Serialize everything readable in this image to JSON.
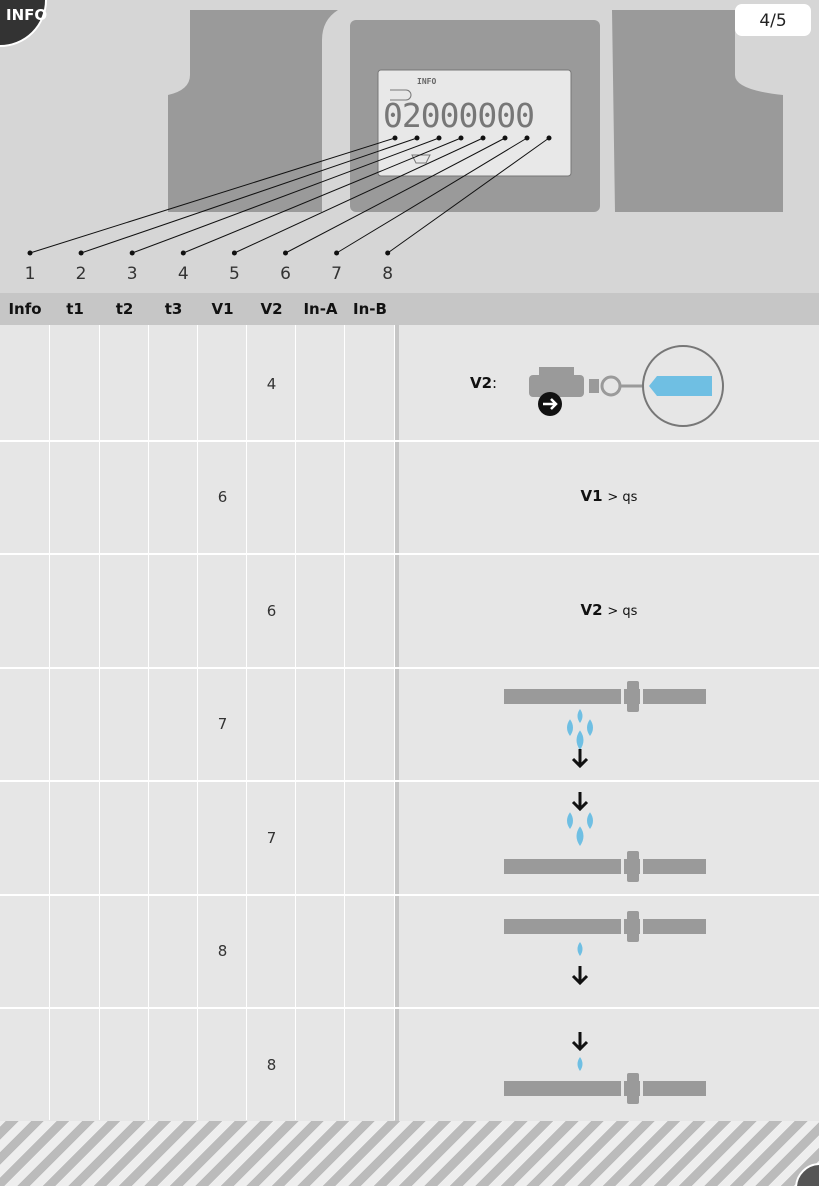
{
  "badge": "INFO",
  "page_indicator": "4/5",
  "display": {
    "label": "INFO",
    "digits": "02000000"
  },
  "callouts": [
    "1",
    "2",
    "3",
    "4",
    "5",
    "6",
    "7",
    "8"
  ],
  "table": {
    "headers": [
      "Info",
      "t1",
      "t2",
      "t3",
      "V1",
      "V2",
      "In-A",
      "In-B"
    ],
    "rows": [
      {
        "V2": 4,
        "note": {
          "label": "V2",
          "suffix": ":"
        }
      },
      {
        "V1": 6,
        "note": {
          "label": "V1",
          "text": "> qs"
        }
      },
      {
        "V2": 6,
        "note": {
          "label": "V2",
          "text": "> qs"
        }
      },
      {
        "V1": 7
      },
      {
        "V2": 7
      },
      {
        "V1": 8
      },
      {
        "V2": 8
      }
    ]
  }
}
